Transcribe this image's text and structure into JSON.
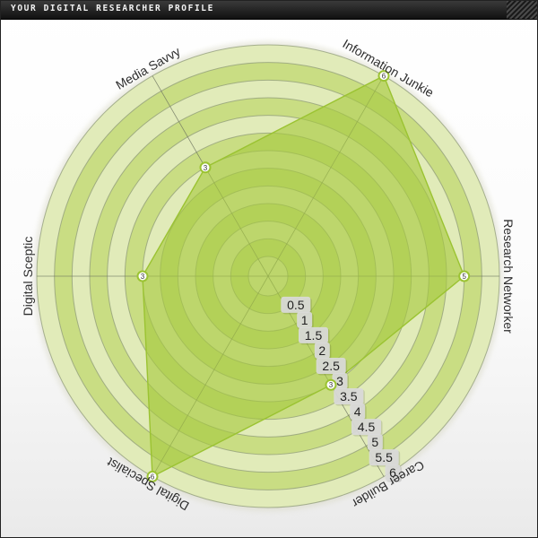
{
  "header": {
    "title": "YOUR DIGITAL RESEARCHER PROFILE"
  },
  "colors": {
    "ring_fill_light": "#e1ebb9",
    "ring_fill_dark": "#c9dd83",
    "ring_stroke": "#8f9b78",
    "area_fill": "#a6c93e",
    "area_stroke": "#9bc332",
    "marker_stroke": "#9bc332",
    "label_box": "#dadada"
  },
  "chart_data": {
    "type": "radar",
    "title": "YOUR DIGITAL RESEARCHER PROFILE",
    "axes": [
      "Information Junkie",
      "Research Networker",
      "Career Builder",
      "Digital Specialist",
      "Digital Sceptic",
      "Media Savvy"
    ],
    "series": [
      {
        "values": [
          6,
          5,
          3,
          6,
          3,
          3
        ]
      }
    ],
    "rlim": [
      0,
      6
    ],
    "ring_step": 0.5,
    "ring_labels": [
      "0.5",
      "1",
      "1.5",
      "2",
      "2.5",
      "3",
      "3.5",
      "4",
      "4.5",
      "5",
      "5.5",
      "6"
    ],
    "grid": true,
    "legend": "none"
  }
}
